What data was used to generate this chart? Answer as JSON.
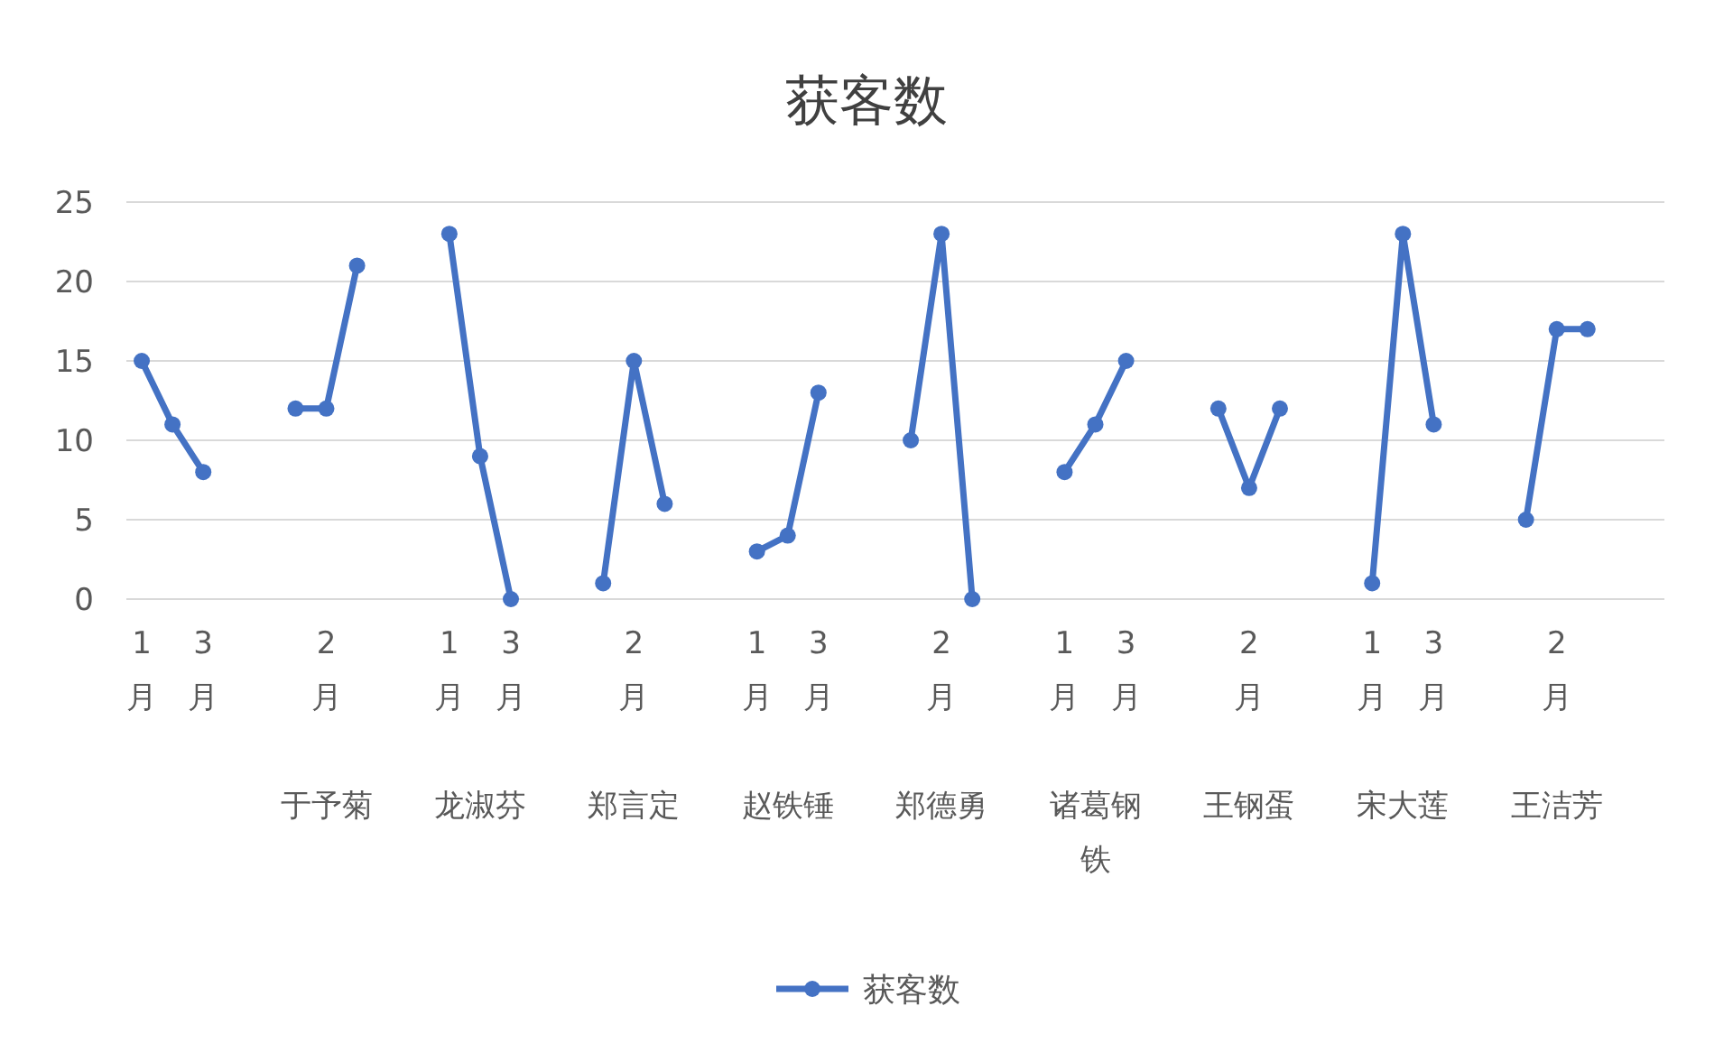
{
  "chart_data": {
    "type": "line",
    "title": "获客数",
    "categories": [
      "1月",
      null,
      "3月",
      null,
      null,
      null,
      "2月",
      null,
      null,
      null,
      "1月",
      null,
      "3月",
      null,
      null,
      null,
      "2月",
      null,
      null,
      null,
      "1月",
      null,
      "3月",
      null,
      null,
      null,
      "2月",
      null,
      null,
      null,
      "1月",
      null,
      "3月",
      null,
      null,
      null,
      "2月",
      null,
      null,
      null,
      "1月",
      null,
      "3月",
      null,
      null,
      null,
      "2月",
      null,
      null,
      null
    ],
    "annotations": [
      "于予菊",
      "龙淑芬",
      "郑言定",
      "赵铁锤",
      "郑德勇",
      "诸葛钢铁",
      "王钢蛋",
      "宋大莲",
      "王洁芳"
    ],
    "series": [
      {
        "name": "获客数",
        "color": "#4472c4",
        "values": [
          15,
          11,
          8,
          null,
          null,
          12,
          12,
          21,
          null,
          null,
          23,
          9,
          0,
          null,
          null,
          1,
          15,
          6,
          null,
          null,
          3,
          4,
          13,
          null,
          null,
          10,
          23,
          0,
          null,
          null,
          8,
          11,
          15,
          null,
          null,
          12,
          7,
          12,
          null,
          null,
          1,
          23,
          11,
          null,
          null,
          5,
          17,
          17,
          null,
          null
        ]
      }
    ],
    "ylim": [
      0,
      25
    ],
    "yticks": [
      0,
      5,
      10,
      15,
      20,
      25
    ],
    "grid": "y",
    "legend": "bottom",
    "marker": "circle",
    "line_style": "solid"
  }
}
